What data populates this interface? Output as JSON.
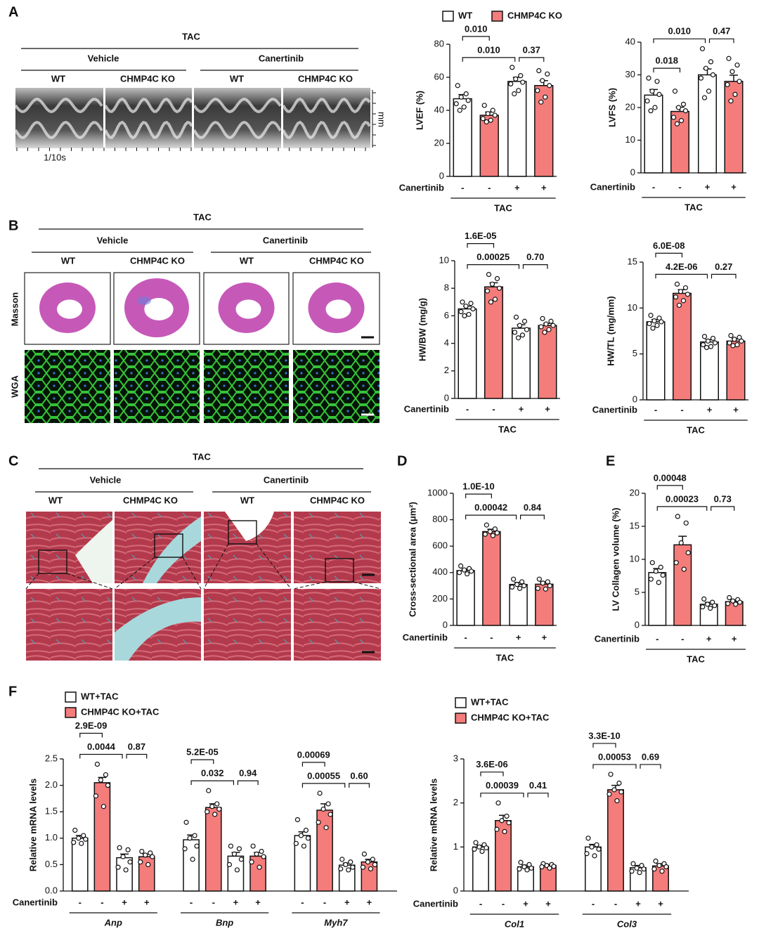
{
  "panels": [
    {
      "letter": "A",
      "title": "TAC",
      "conditions": [
        "Vehicle",
        "Canertinib"
      ],
      "genotypes": [
        "WT",
        "CHMP4C KO",
        "WT",
        "CHMP4C KO"
      ],
      "time_scale": "1/10s",
      "depth_unit": "mm"
    },
    {
      "letter": "B",
      "title": "TAC",
      "conditions": [
        "Vehicle",
        "Canertinib"
      ],
      "genotypes": [
        "WT",
        "CHMP4C KO",
        "WT",
        "CHMP4C KO"
      ],
      "rows": [
        "Masson",
        "WGA"
      ]
    },
    {
      "letter": "C",
      "title": "TAC",
      "conditions": [
        "Vehicle",
        "Canertinib"
      ],
      "genotypes": [
        "WT",
        "CHMP4C KO",
        "WT",
        "CHMP4C KO"
      ]
    },
    {
      "letter": "F"
    }
  ],
  "chart_data": [
    {
      "type": "bar",
      "ylabel": "LVEF (%)",
      "ylim": [
        0,
        80
      ],
      "yticks": [
        0,
        20,
        40,
        60,
        80
      ],
      "row_label": "Canertinib",
      "bar_colors": [
        "#ffffff",
        "#f47c7a",
        "#ffffff",
        "#f47c7a"
      ],
      "legend": [
        {
          "name": "WT",
          "color": "#ffffff"
        },
        {
          "name": "CHMP4C KO",
          "color": "#f47c7a"
        }
      ],
      "groups": [
        {
          "label": "TAC",
          "signs": [
            "-",
            "-",
            "+",
            "+"
          ],
          "means": [
            47,
            37,
            57.5,
            55
          ],
          "errors": [
            2.5,
            2,
            2.5,
            3
          ],
          "points": [
            [
              55,
              50,
              48,
              46,
              44,
              42,
              40
            ],
            [
              43,
              40,
              38,
              37,
              35,
              34,
              33
            ],
            [
              66,
              61,
              59,
              57,
              56,
              52,
              50
            ],
            [
              64,
              62,
              58,
              55,
              52,
              48,
              45
            ]
          ],
          "p_values": [
            "0.010",
            "0.010",
            "0.37"
          ]
        }
      ]
    },
    {
      "type": "bar",
      "ylabel": "LVFS (%)",
      "ylim": [
        0,
        40
      ],
      "yticks": [
        0,
        10,
        20,
        30,
        40
      ],
      "row_label": "Canertinib",
      "bar_colors": [
        "#ffffff",
        "#f47c7a",
        "#ffffff",
        "#f47c7a"
      ],
      "groups": [
        {
          "label": "TAC",
          "signs": [
            "-",
            "-",
            "+",
            "+"
          ],
          "means": [
            23.8,
            18.8,
            30,
            28
          ],
          "errors": [
            1.7,
            1.3,
            1.8,
            1.9
          ],
          "points": [
            [
              29,
              28,
              25,
              24,
              22,
              20,
              19
            ],
            [
              25,
              21,
              20,
              19,
              17,
              16,
              15
            ],
            [
              38,
              34,
              32,
              30,
              29,
              25,
              23
            ],
            [
              35,
              33,
              31,
              28,
              27,
              24,
              22
            ]
          ],
          "p_values": [
            "0.018",
            "0.010",
            "0.47"
          ]
        }
      ]
    },
    {
      "type": "bar",
      "ylabel": "HW/BW (mg/g)",
      "ylim": [
        0,
        10
      ],
      "yticks": [
        0,
        2,
        4,
        6,
        8,
        10
      ],
      "row_label": "Canertinib",
      "bar_colors": [
        "#ffffff",
        "#f47c7a",
        "#ffffff",
        "#f47c7a"
      ],
      "groups": [
        {
          "label": "TAC",
          "signs": [
            "-",
            "-",
            "+",
            "+"
          ],
          "means": [
            6.5,
            8.1,
            5.1,
            5.3
          ],
          "errors": [
            0.2,
            0.3,
            0.25,
            0.15
          ],
          "points": [
            [
              7.0,
              6.9,
              6.7,
              6.5,
              6.3,
              6.1,
              6.0
            ],
            [
              9.0,
              8.7,
              8.3,
              8.0,
              7.8,
              7.2,
              7.0
            ],
            [
              5.9,
              5.6,
              5.3,
              5.0,
              4.8,
              4.6,
              4.4
            ],
            [
              5.8,
              5.6,
              5.4,
              5.3,
              5.2,
              5.0,
              4.8
            ]
          ],
          "p_values": [
            "1.6E-05",
            "0.00025",
            "0.70"
          ]
        }
      ]
    },
    {
      "type": "bar",
      "ylabel": "HW/TL (mg/mm)",
      "ylim": [
        0,
        15
      ],
      "yticks": [
        0,
        5,
        10,
        15
      ],
      "row_label": "Canertinib",
      "bar_colors": [
        "#ffffff",
        "#f47c7a",
        "#ffffff",
        "#f47c7a"
      ],
      "groups": [
        {
          "label": "TAC",
          "signs": [
            "-",
            "-",
            "+",
            "+"
          ],
          "means": [
            8.5,
            11.6,
            6.3,
            6.4
          ],
          "errors": [
            0.25,
            0.4,
            0.25,
            0.25
          ],
          "points": [
            [
              9.2,
              8.9,
              8.6,
              8.5,
              8.3,
              8.1,
              7.8
            ],
            [
              12.6,
              12.2,
              11.8,
              11.5,
              11.2,
              10.8,
              10.3
            ],
            [
              6.9,
              6.7,
              6.4,
              6.2,
              6.0,
              5.8,
              5.7
            ],
            [
              7.0,
              6.8,
              6.6,
              6.4,
              6.2,
              6.0,
              5.9
            ]
          ],
          "p_values": [
            "6.0E-08",
            "4.2E-06",
            "0.27"
          ]
        }
      ]
    },
    {
      "type": "bar",
      "panel": "D",
      "ylabel": "Cross-sectional area (μm²)",
      "ylim": [
        0,
        1000
      ],
      "yticks": [
        0,
        200,
        400,
        600,
        800,
        1000
      ],
      "row_label": "Canertinib",
      "bar_colors": [
        "#ffffff",
        "#f47c7a",
        "#ffffff",
        "#f47c7a"
      ],
      "groups": [
        {
          "label": "TAC",
          "signs": [
            "-",
            "-",
            "+",
            "+"
          ],
          "means": [
            415,
            710,
            310,
            312
          ],
          "errors": [
            12,
            18,
            15,
            18
          ],
          "points": [
            [
              450,
              430,
              420,
              410,
              400,
              390
            ],
            [
              760,
              730,
              710,
              700,
              690,
              680
            ],
            [
              350,
              330,
              310,
              300,
              290,
              280
            ],
            [
              350,
              330,
              320,
              300,
              280,
              275
            ]
          ],
          "p_values": [
            "1.0E-10",
            "0.00042",
            "0.84"
          ]
        }
      ]
    },
    {
      "type": "bar",
      "panel": "E",
      "ylabel": "LV Collagen volume (%)",
      "ylim": [
        0,
        20
      ],
      "yticks": [
        0,
        5,
        10,
        15,
        20
      ],
      "row_label": "Canertinib",
      "bar_colors": [
        "#ffffff",
        "#f47c7a",
        "#ffffff",
        "#f47c7a"
      ],
      "groups": [
        {
          "label": "TAC",
          "signs": [
            "-",
            "-",
            "+",
            "+"
          ],
          "means": [
            8,
            12.2,
            3.2,
            3.6
          ],
          "errors": [
            0.6,
            1.3,
            0.3,
            0.25
          ],
          "points": [
            [
              9.5,
              8.8,
              8.2,
              7.6,
              7.0,
              6.5
            ],
            [
              16.5,
              15.5,
              12.5,
              11.0,
              9.5,
              8.5
            ],
            [
              4.0,
              3.5,
              3.2,
              3.0,
              2.8,
              2.6
            ],
            [
              4.2,
              3.9,
              3.7,
              3.5,
              3.3,
              3.2
            ]
          ],
          "p_values": [
            "0.00048",
            "0.00023",
            "0.73"
          ]
        }
      ]
    },
    {
      "type": "bar",
      "ylabel": "Relative mRNA levels",
      "ylim": [
        0,
        2.5
      ],
      "yticks": [
        {
          "value": 0,
          "label": "0.0"
        },
        0.5,
        {
          "value": 1,
          "label": "1.0"
        },
        1.5,
        {
          "value": 2,
          "label": "2.0"
        },
        2.5
      ],
      "row_label": "Canertinib",
      "bar_colors": [
        "#ffffff",
        "#f47c7a",
        "#ffffff",
        "#f47c7a"
      ],
      "legend": [
        {
          "name": "WT+TAC",
          "color": "#ffffff"
        },
        {
          "name": "CHMP4C KO+TAC",
          "color": "#f47c7a"
        }
      ],
      "groups": [
        {
          "label": "Anp",
          "signs": [
            "-",
            "-",
            "+",
            "+"
          ],
          "means": [
            1.0,
            2.05,
            0.63,
            0.65
          ],
          "errors": [
            0.05,
            0.1,
            0.07,
            0.05
          ],
          "points": [
            [
              1.15,
              1.05,
              1.0,
              0.98,
              0.92,
              0.9
            ],
            [
              2.4,
              2.2,
              2.1,
              2.0,
              1.8,
              1.6
            ],
            [
              0.82,
              0.78,
              0.65,
              0.55,
              0.45,
              0.4
            ],
            [
              0.75,
              0.72,
              0.68,
              0.65,
              0.55,
              0.5
            ]
          ],
          "p_values": [
            "2.9E-09",
            "0.0044",
            "0.87"
          ]
        },
        {
          "label": "Bnp",
          "signs": [
            "-",
            "-",
            "+",
            "+"
          ],
          "means": [
            0.97,
            1.58,
            0.66,
            0.66
          ],
          "errors": [
            0.09,
            0.07,
            0.07,
            0.07
          ],
          "points": [
            [
              1.3,
              1.05,
              1.0,
              0.85,
              0.8,
              0.6
            ],
            [
              1.9,
              1.65,
              1.6,
              1.55,
              1.5,
              1.45
            ],
            [
              0.85,
              0.8,
              0.7,
              0.6,
              0.5,
              0.4
            ],
            [
              0.85,
              0.75,
              0.7,
              0.65,
              0.55,
              0.45
            ]
          ],
          "p_values": [
            "5.2E-05",
            "0.032",
            "0.94"
          ]
        },
        {
          "label": "Myh7",
          "signs": [
            "-",
            "-",
            "+",
            "+"
          ],
          "means": [
            1.05,
            1.53,
            0.49,
            0.55
          ],
          "errors": [
            0.07,
            0.12,
            0.04,
            0.05
          ],
          "points": [
            [
              1.35,
              1.15,
              1.05,
              1.0,
              0.9,
              0.85
            ],
            [
              1.85,
              1.65,
              1.55,
              1.45,
              1.3,
              1.2
            ],
            [
              0.6,
              0.55,
              0.5,
              0.45,
              0.42,
              0.4
            ],
            [
              0.7,
              0.6,
              0.55,
              0.5,
              0.45,
              0.42
            ]
          ],
          "p_values": [
            "0.00069",
            "0.00055",
            "0.60"
          ]
        }
      ]
    },
    {
      "type": "bar",
      "ylabel": "Relative mRNA levels",
      "ylim": [
        0,
        3
      ],
      "yticks": [
        0,
        1,
        2,
        3
      ],
      "row_label": "Canertinib",
      "bar_colors": [
        "#ffffff",
        "#f47c7a",
        "#ffffff",
        "#f47c7a"
      ],
      "legend": [
        {
          "name": "WT+TAC",
          "color": "#ffffff"
        },
        {
          "name": "CHMP4C KO+TAC",
          "color": "#f47c7a"
        }
      ],
      "groups": [
        {
          "label": "Col1",
          "signs": [
            "-",
            "-",
            "+",
            "+"
          ],
          "means": [
            1.0,
            1.6,
            0.55,
            0.58
          ],
          "errors": [
            0.04,
            0.12,
            0.04,
            0.03
          ],
          "points": [
            [
              1.1,
              1.05,
              1.0,
              0.98,
              0.95,
              0.9
            ],
            [
              2.0,
              1.7,
              1.6,
              1.55,
              1.4,
              1.35
            ],
            [
              0.65,
              0.6,
              0.55,
              0.52,
              0.5,
              0.48
            ],
            [
              0.62,
              0.6,
              0.58,
              0.56,
              0.55,
              0.52
            ]
          ],
          "p_values": [
            "3.6E-06",
            "0.00039",
            "0.41"
          ]
        },
        {
          "label": "Col3",
          "signs": [
            "-",
            "-",
            "+",
            "+"
          ],
          "means": [
            1.0,
            2.3,
            0.53,
            0.57
          ],
          "errors": [
            0.06,
            0.1,
            0.05,
            0.05
          ],
          "points": [
            [
              1.2,
              1.05,
              1.0,
              0.95,
              0.85,
              0.8
            ],
            [
              2.65,
              2.45,
              2.3,
              2.25,
              2.2,
              2.05
            ],
            [
              0.62,
              0.58,
              0.52,
              0.5,
              0.45,
              0.42
            ],
            [
              0.68,
              0.62,
              0.58,
              0.55,
              0.5,
              0.45
            ]
          ],
          "p_values": [
            "3.3E-10",
            "0.00053",
            "0.69"
          ]
        }
      ]
    }
  ]
}
